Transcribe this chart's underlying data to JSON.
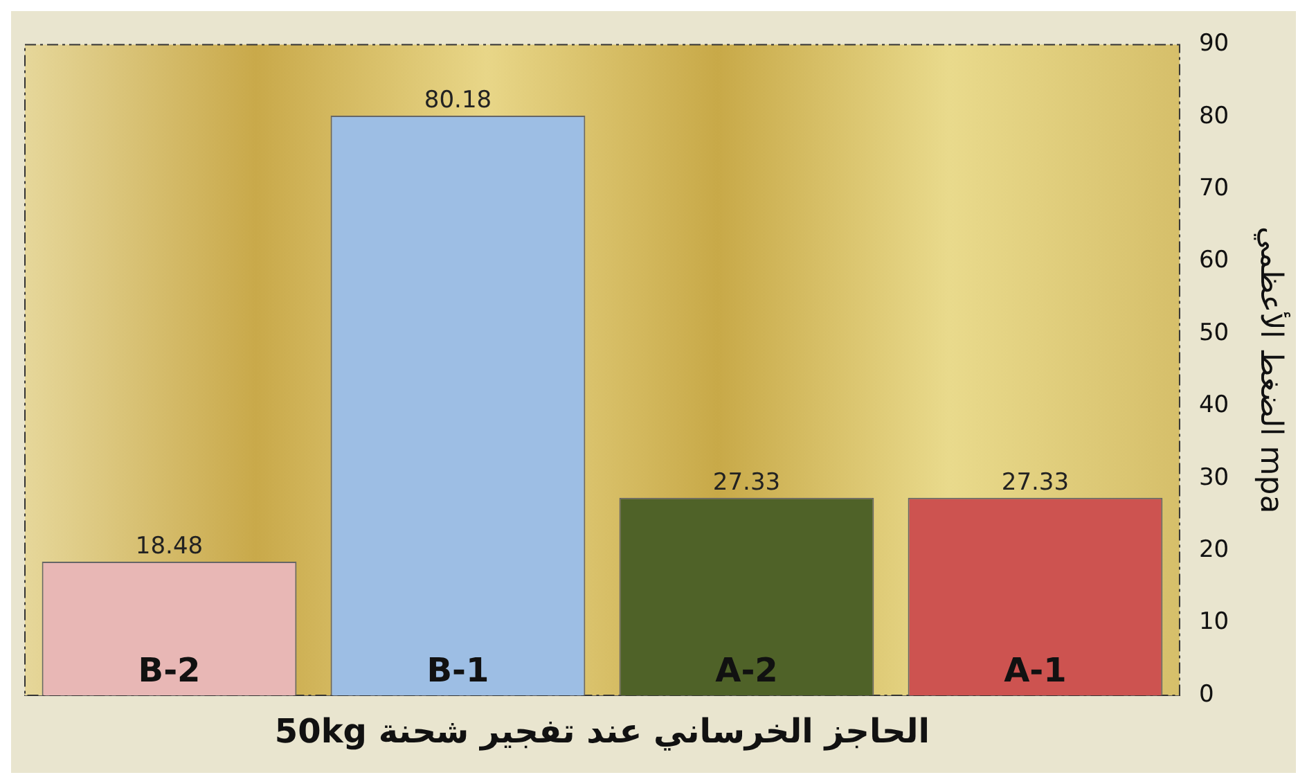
{
  "chart_data": {
    "type": "bar",
    "xlabel": "الحاجز الخرساني عند تفجير شحنة 50kg",
    "ylabel": "الضغط الأعظمي mpa",
    "categories": [
      "B-2",
      "B-1",
      "A-2",
      "A-1"
    ],
    "values": [
      18.48,
      80.18,
      27.33,
      27.33
    ],
    "colors": [
      "#e8b7b5",
      "#9dbee4",
      "#4f6228",
      "#cd5350"
    ],
    "ylim": [
      0,
      90
    ],
    "yticks": [
      0,
      10,
      20,
      30,
      40,
      50,
      60,
      70,
      80,
      90
    ],
    "grid": false,
    "legend": false,
    "data_labels": true
  }
}
